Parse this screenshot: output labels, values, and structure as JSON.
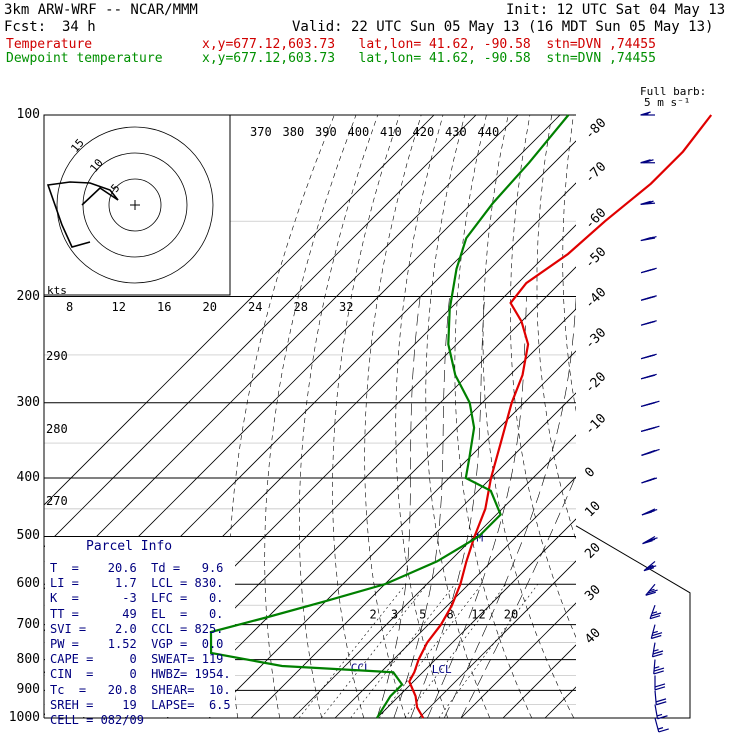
{
  "header": {
    "model": "3km ARW-WRF -- NCAR/MMM",
    "init": "Init: 12 UTC Sat 04 May 13",
    "fcst_label": "Fcst:",
    "fcst_value": "34 h",
    "valid": "Valid: 22 UTC Sun 05 May 13 (16 MDT Sun 05 May 13)",
    "temp_label": "Temperature",
    "temp_loc": "x,y=677.12,603.73   lat,lon= 41.62, -90.58  stn=DVN ,74455",
    "dew_label": "Dewpoint temperature",
    "dew_loc": "x,y=677.12,603.73   lat,lon= 41.62, -90.58  stn=DVN ,74455"
  },
  "barb_legend": {
    "line1": "Full barb:",
    "line2": "5 m s⁻¹"
  },
  "hodograph": {
    "units": "kts",
    "rings": [
      "5",
      "10",
      "15"
    ]
  },
  "parcel_info": {
    "title": "Parcel Info",
    "rows": [
      "T  =    20.6  Td =   9.6",
      "LI =     1.7  LCL = 830.",
      "K  =      -3  LFC =   0.",
      "TT =      49  EL  =   0.",
      "SVI =    2.0  CCL = 825.",
      "PW =    1.52  VGP =  0.0",
      "CAPE =     0  SWEAT= 119",
      "CIN  =     0  HWBZ= 1954.",
      "Tc  =   20.8  SHEAR=  10.",
      "SREH =    19  LAPSE=  6.5",
      "CELL = 082/09"
    ]
  },
  "annotations": {
    "ccl": "CCL",
    "lcl": "LCL",
    "m": "M"
  },
  "colors": {
    "temperature": "#e00000",
    "dewpoint": "#008000",
    "parcel_info": "#000080"
  },
  "chart_data": {
    "type": "line",
    "diagram": "skew-T log-p",
    "y_axis": {
      "name": "pressure (hPa)",
      "ticks": [
        100,
        200,
        300,
        400,
        500,
        600,
        700,
        800,
        900,
        1000
      ],
      "scale": "log"
    },
    "isotherm_labels": [
      -80,
      -70,
      -60,
      -50,
      -40,
      -30,
      -20,
      -10,
      0,
      10,
      20,
      30,
      40
    ],
    "theta_e_labels": [
      370,
      380,
      390,
      400,
      410,
      420,
      430,
      440
    ],
    "theta_labels_lower": [
      290,
      280,
      270
    ],
    "mixing_ratio_labels": [
      2,
      3,
      5,
      8,
      12,
      20
    ],
    "hodograph_speed_labels": [
      8,
      12,
      16,
      20,
      24,
      28,
      32
    ],
    "series": [
      {
        "name": "Temperature",
        "points": [
          [
            1000,
            21
          ],
          [
            960,
            17
          ],
          [
            920,
            14
          ],
          [
            870,
            9
          ],
          [
            840,
            8
          ],
          [
            800,
            6
          ],
          [
            750,
            4
          ],
          [
            700,
            3
          ],
          [
            650,
            1
          ],
          [
            600,
            -2
          ],
          [
            550,
            -6
          ],
          [
            500,
            -10
          ],
          [
            450,
            -14
          ],
          [
            400,
            -20
          ],
          [
            350,
            -26
          ],
          [
            300,
            -33
          ],
          [
            270,
            -37
          ],
          [
            240,
            -43
          ],
          [
            220,
            -50
          ],
          [
            205,
            -57
          ],
          [
            190,
            -58
          ],
          [
            170,
            -55
          ],
          [
            150,
            -54
          ],
          [
            130,
            -52
          ],
          [
            115,
            -52
          ],
          [
            100,
            -54
          ]
        ]
      },
      {
        "name": "Dewpoint temperature",
        "points": [
          [
            1000,
            10
          ],
          [
            960,
            9
          ],
          [
            920,
            8
          ],
          [
            880,
            8
          ],
          [
            840,
            3
          ],
          [
            820,
            -25
          ],
          [
            780,
            -45
          ],
          [
            720,
            -50
          ],
          [
            680,
            -40
          ],
          [
            640,
            -30
          ],
          [
            600,
            -20
          ],
          [
            550,
            -13
          ],
          [
            500,
            -9
          ],
          [
            460,
            -9
          ],
          [
            420,
            -17
          ],
          [
            400,
            -26
          ],
          [
            370,
            -30
          ],
          [
            330,
            -36
          ],
          [
            300,
            -43
          ],
          [
            270,
            -53
          ],
          [
            240,
            -62
          ],
          [
            210,
            -70
          ],
          [
            180,
            -78
          ],
          [
            160,
            -83
          ],
          [
            140,
            -85
          ],
          [
            120,
            -86
          ],
          [
            100,
            -88
          ]
        ]
      }
    ],
    "wind_barbs": [
      [
        100,
        270,
        15
      ],
      [
        120,
        270,
        20
      ],
      [
        140,
        265,
        25
      ],
      [
        160,
        260,
        30
      ],
      [
        180,
        255,
        30
      ],
      [
        200,
        255,
        30
      ],
      [
        220,
        255,
        35
      ],
      [
        250,
        255,
        35
      ],
      [
        270,
        255,
        35
      ],
      [
        300,
        255,
        40
      ],
      [
        330,
        255,
        40
      ],
      [
        360,
        250,
        40
      ],
      [
        400,
        250,
        35
      ],
      [
        450,
        245,
        30
      ],
      [
        500,
        240,
        30
      ],
      [
        550,
        230,
        25
      ],
      [
        600,
        220,
        25
      ],
      [
        650,
        200,
        25
      ],
      [
        700,
        195,
        25
      ],
      [
        750,
        190,
        25
      ],
      [
        800,
        185,
        25
      ],
      [
        850,
        180,
        20
      ],
      [
        900,
        175,
        20
      ],
      [
        950,
        170,
        15
      ],
      [
        1000,
        165,
        15
      ]
    ]
  }
}
